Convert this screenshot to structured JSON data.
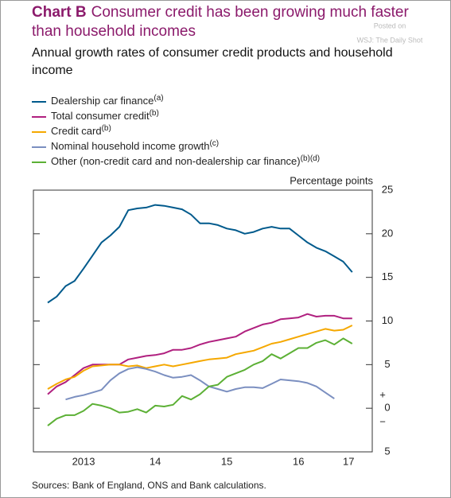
{
  "chart_data": {
    "type": "line",
    "chart_label": "Chart B",
    "title": "Consumer credit has been growing much faster than household incomes",
    "subtitle": "Annual growth rates of consumer credit products and household income",
    "y_axis_label": "Percentage points",
    "y_sign_labels": {
      "positive": "+",
      "negative": "−"
    },
    "source": "Sources: Bank of England, ONS and Bank calculations.",
    "watermark": [
      "Posted on",
      "WSJ: The Daily Shot"
    ],
    "x": [
      2013,
      2013.125,
      2013.25,
      2013.375,
      2013.5,
      2013.625,
      2013.75,
      2013.875,
      2014,
      2014.125,
      2014.25,
      2014.375,
      2014.5,
      2014.625,
      2014.75,
      2014.875,
      2015,
      2015.125,
      2015.25,
      2015.375,
      2015.5,
      2015.625,
      2015.75,
      2015.875,
      2016,
      2016.125,
      2016.25,
      2016.375,
      2016.5,
      2016.625,
      2016.75,
      2016.875,
      2017,
      2017.125,
      2017.25
    ],
    "xlim": [
      2012.8,
      2017.53
    ],
    "xticks": [
      {
        "value": 2013.5,
        "label": "2013"
      },
      {
        "value": 2014.5,
        "label": "14"
      },
      {
        "value": 2015.5,
        "label": "15"
      },
      {
        "value": 2016.5,
        "label": "16"
      },
      {
        "value": 2017.2,
        "label": "17"
      }
    ],
    "ylim": [
      -5,
      25
    ],
    "yticks": [
      {
        "value": -5,
        "label": "5"
      },
      0,
      5,
      10,
      15,
      20,
      25
    ],
    "series": [
      {
        "name": "Dealership car finance",
        "footnote": "(a)",
        "color": "#005a8c",
        "values": [
          12.1,
          12.8,
          14.0,
          14.6,
          16.0,
          17.5,
          19.0,
          19.8,
          20.8,
          22.7,
          22.9,
          23.0,
          23.3,
          23.2,
          23.0,
          22.8,
          22.2,
          21.2,
          21.2,
          21.0,
          20.6,
          20.4,
          20.0,
          20.2,
          20.6,
          20.8,
          20.6,
          20.6,
          19.8,
          19.0,
          18.4,
          18.0,
          17.4,
          16.8,
          15.6
        ]
      },
      {
        "name": "Total consumer credit",
        "footnote": "(b)",
        "color": "#b0207f",
        "values": [
          1.6,
          2.5,
          3.0,
          3.8,
          4.6,
          5.0,
          5.0,
          5.0,
          5.0,
          5.6,
          5.8,
          6.0,
          6.1,
          6.3,
          6.7,
          6.7,
          6.9,
          7.3,
          7.6,
          7.8,
          8.0,
          8.2,
          8.8,
          9.2,
          9.6,
          9.8,
          10.2,
          10.3,
          10.4,
          10.8,
          10.5,
          10.6,
          10.6,
          10.3,
          10.3
        ]
      },
      {
        "name": "Credit card",
        "footnote": "(b)",
        "color": "#f5a800",
        "values": [
          2.2,
          2.8,
          3.3,
          3.6,
          4.3,
          4.8,
          4.9,
          5.0,
          5.0,
          4.8,
          4.9,
          4.6,
          4.8,
          5.0,
          4.8,
          5.0,
          5.2,
          5.4,
          5.6,
          5.7,
          5.8,
          6.2,
          6.4,
          6.6,
          7.0,
          7.4,
          7.6,
          7.9,
          8.2,
          8.5,
          8.8,
          9.1,
          8.9,
          9.0,
          9.5
        ]
      },
      {
        "name": "Nominal household income growth",
        "footnote": "(c)",
        "color": "#7b8fc0",
        "values": [
          null,
          null,
          1.0,
          1.3,
          1.5,
          1.8,
          2.1,
          3.2,
          4.0,
          4.5,
          4.7,
          4.5,
          4.2,
          3.8,
          3.5,
          3.6,
          3.8,
          3.2,
          2.5,
          2.2,
          1.9,
          2.2,
          2.4,
          2.4,
          2.3,
          2.8,
          3.3,
          3.2,
          3.1,
          2.9,
          2.5,
          1.8,
          1.1,
          null,
          null
        ]
      },
      {
        "name": "Other (non-credit card and non-dealership car finance)",
        "footnote": "(b)(d)",
        "color": "#5cb035",
        "values": [
          -2.0,
          -1.2,
          -0.8,
          -0.8,
          -0.3,
          0.5,
          0.3,
          0.0,
          -0.5,
          -0.4,
          -0.1,
          -0.5,
          0.3,
          0.2,
          0.4,
          1.4,
          1.0,
          1.6,
          2.5,
          2.7,
          3.6,
          4.0,
          4.4,
          5.0,
          5.4,
          6.2,
          5.7,
          6.3,
          6.9,
          6.9,
          7.5,
          7.8,
          7.3,
          8.0,
          7.4
        ]
      }
    ]
  }
}
